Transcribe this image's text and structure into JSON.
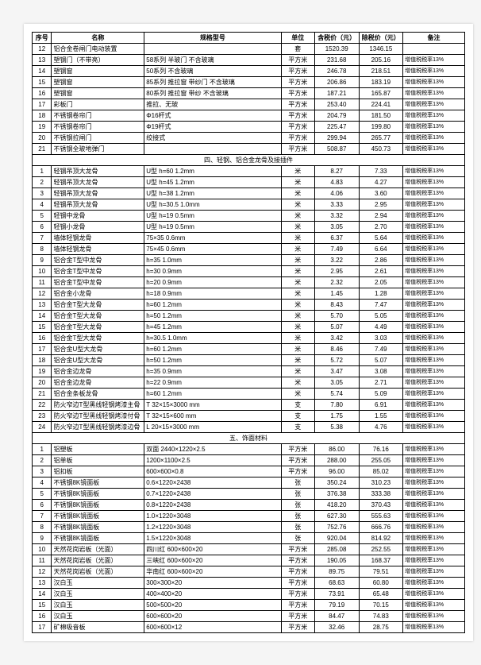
{
  "headers": [
    "序号",
    "名称",
    "规格型号",
    "单位",
    "含税价（元）",
    "除税价（元）",
    "备注"
  ],
  "sections": [
    {
      "title": null,
      "rows": [
        {
          "n": "12",
          "name": "铝合金卷闸门电动装置",
          "spec": "",
          "unit": "套",
          "p1": "1520.39",
          "p2": "1346.15",
          "remark": ""
        },
        {
          "n": "13",
          "name": "塑钢门（不带亮）",
          "spec": "58系列 半玻门 不含玻璃",
          "unit": "平方米",
          "p1": "231.68",
          "p2": "205.16",
          "remark": "增值税税率13%"
        },
        {
          "n": "14",
          "name": "塑钢窗",
          "spec": "50系列  不含玻璃",
          "unit": "平方米",
          "p1": "246.78",
          "p2": "218.51",
          "remark": "增值税税率13%"
        },
        {
          "n": "15",
          "name": "塑钢窗",
          "spec": "85系列 推拉窗 带纱门 不含玻璃",
          "unit": "平方米",
          "p1": "206.86",
          "p2": "183.19",
          "remark": "增值税税率13%"
        },
        {
          "n": "16",
          "name": "塑钢窗",
          "spec": "80系列 推拉窗 带纱 不含玻璃",
          "unit": "平方米",
          "p1": "187.21",
          "p2": "165.87",
          "remark": "增值税税率13%"
        },
        {
          "n": "17",
          "name": "彩板门",
          "spec": "推拉、无玻",
          "unit": "平方米",
          "p1": "253.40",
          "p2": "224.41",
          "remark": "增值税税率13%"
        },
        {
          "n": "18",
          "name": "不锈钢卷帘门",
          "spec": "Φ16杆式",
          "unit": "平方米",
          "p1": "204.79",
          "p2": "181.50",
          "remark": "增值税税率13%"
        },
        {
          "n": "19",
          "name": "不锈钢卷帘门",
          "spec": "Φ19杆式",
          "unit": "平方米",
          "p1": "225.47",
          "p2": "199.80",
          "remark": "增值税税率13%"
        },
        {
          "n": "20",
          "name": "不锈钢拉闸门",
          "spec": "绞接式",
          "unit": "平方米",
          "p1": "299.94",
          "p2": "265.77",
          "remark": "增值税税率13%"
        },
        {
          "n": "21",
          "name": "不锈钢全玻地弹门",
          "spec": "",
          "unit": "平方米",
          "p1": "508.87",
          "p2": "450.73",
          "remark": "增值税税率13%"
        }
      ]
    },
    {
      "title": "四、轻钢、铝合金龙骨及接插件",
      "rows": [
        {
          "n": "1",
          "name": "轻钢吊顶大龙骨",
          "spec": "U型 h=60    1.2mm",
          "unit": "米",
          "p1": "8.27",
          "p2": "7.33",
          "remark": "增值税税率13%"
        },
        {
          "n": "2",
          "name": "轻钢吊顶大龙骨",
          "spec": "U型 h=45    1.2mm",
          "unit": "米",
          "p1": "4.83",
          "p2": "4.27",
          "remark": "增值税税率13%"
        },
        {
          "n": "3",
          "name": "轻钢吊顶大龙骨",
          "spec": "U型 h=38    1.2mm",
          "unit": "米",
          "p1": "4.06",
          "p2": "3.60",
          "remark": "增值税税率13%"
        },
        {
          "n": "4",
          "name": "轻钢吊顶大龙骨",
          "spec": "U型 h=30.5  1.0mm",
          "unit": "米",
          "p1": "3.33",
          "p2": "2.95",
          "remark": "增值税税率13%"
        },
        {
          "n": "5",
          "name": "轻钢中龙骨",
          "spec": "U型 h=19    0.5mm",
          "unit": "米",
          "p1": "3.32",
          "p2": "2.94",
          "remark": "增值税税率13%"
        },
        {
          "n": "6",
          "name": "轻钢小龙骨",
          "spec": "U型 h=19    0.5mm",
          "unit": "米",
          "p1": "3.05",
          "p2": "2.70",
          "remark": "增值税税率13%"
        },
        {
          "n": "7",
          "name": "墙体轻钢龙骨",
          "spec": "75×35      0.6mm",
          "unit": "米",
          "p1": "6.37",
          "p2": "5.64",
          "remark": "增值税税率13%"
        },
        {
          "n": "8",
          "name": "墙体轻钢龙骨",
          "spec": "75×45      0.6mm",
          "unit": "米",
          "p1": "7.49",
          "p2": "6.64",
          "remark": "增值税税率13%"
        },
        {
          "n": "9",
          "name": "铝合金T型中龙骨",
          "spec": "h=35       1.0mm",
          "unit": "米",
          "p1": "3.22",
          "p2": "2.86",
          "remark": "增值税税率13%"
        },
        {
          "n": "10",
          "name": "铝合金T型中龙骨",
          "spec": "h=30       0.9mm",
          "unit": "米",
          "p1": "2.95",
          "p2": "2.61",
          "remark": "增值税税率13%"
        },
        {
          "n": "11",
          "name": "铝合金T型中龙骨",
          "spec": "h=20       0.9mm",
          "unit": "米",
          "p1": "2.32",
          "p2": "2.05",
          "remark": "增值税税率13%"
        },
        {
          "n": "12",
          "name": "铝合金小龙骨",
          "spec": "h=18       0.9mm",
          "unit": "米",
          "p1": "1.45",
          "p2": "1.28",
          "remark": "增值税税率13%"
        },
        {
          "n": "13",
          "name": "铝合金T型大龙骨",
          "spec": "h=60       1.2mm",
          "unit": "米",
          "p1": "8.43",
          "p2": "7.47",
          "remark": "增值税税率13%"
        },
        {
          "n": "14",
          "name": "铝合金T型大龙骨",
          "spec": "h=50       1.2mm",
          "unit": "米",
          "p1": "5.70",
          "p2": "5.05",
          "remark": "增值税税率13%"
        },
        {
          "n": "15",
          "name": "铝合金T型大龙骨",
          "spec": "h=45       1.2mm",
          "unit": "米",
          "p1": "5.07",
          "p2": "4.49",
          "remark": "增值税税率13%"
        },
        {
          "n": "16",
          "name": "铝合金T型大龙骨",
          "spec": "h=30.5     1.0mm",
          "unit": "米",
          "p1": "3.42",
          "p2": "3.03",
          "remark": "增值税税率13%"
        },
        {
          "n": "17",
          "name": "铝合金U型大龙骨",
          "spec": "h=60       1.2mm",
          "unit": "米",
          "p1": "8.46",
          "p2": "7.49",
          "remark": "增值税税率13%"
        },
        {
          "n": "18",
          "name": "铝合金U型大龙骨",
          "spec": "h=50       1.2mm",
          "unit": "米",
          "p1": "5.72",
          "p2": "5.07",
          "remark": "增值税税率13%"
        },
        {
          "n": "19",
          "name": "铝合金边龙骨",
          "spec": "h=35       0.9mm",
          "unit": "米",
          "p1": "3.47",
          "p2": "3.08",
          "remark": "增值税税率13%"
        },
        {
          "n": "20",
          "name": "铝合金边龙骨",
          "spec": "h=22       0.9mm",
          "unit": "米",
          "p1": "3.05",
          "p2": "2.71",
          "remark": "增值税税率13%"
        },
        {
          "n": "21",
          "name": "铝合金条板龙骨",
          "spec": "h=60       1.2mm",
          "unit": "米",
          "p1": "5.74",
          "p2": "5.09",
          "remark": "增值税税率13%"
        },
        {
          "n": "22",
          "name": "防火窄边T型黑线轻钢烤漆主骨",
          "spec": "T 32×15×3000 mm",
          "unit": "支",
          "p1": "7.80",
          "p2": "6.91",
          "remark": "增值税税率13%"
        },
        {
          "n": "23",
          "name": "防火窄边T型黑线轻钢烤漆付骨",
          "spec": "T 32×15×600  mm",
          "unit": "支",
          "p1": "1.75",
          "p2": "1.55",
          "remark": "增值税税率13%"
        },
        {
          "n": "24",
          "name": "防火窄边T型黑线轻钢烤漆边骨",
          "spec": "L 20×15×3000 mm",
          "unit": "支",
          "p1": "5.38",
          "p2": "4.76",
          "remark": "增值税税率13%"
        }
      ]
    },
    {
      "title": "五、饰面材料",
      "rows": [
        {
          "n": "1",
          "name": "铝塑板",
          "spec": "双面 2440×1220×2.5",
          "unit": "平方米",
          "p1": "86.00",
          "p2": "76.16",
          "remark": "增值税税率13%"
        },
        {
          "n": "2",
          "name": "铝单板",
          "spec": "1200×1100×2.5",
          "unit": "平方米",
          "p1": "288.00",
          "p2": "255.05",
          "remark": "增值税税率13%"
        },
        {
          "n": "3",
          "name": "铝扣板",
          "spec": "600×600×0.8",
          "unit": "平方米",
          "p1": "96.00",
          "p2": "85.02",
          "remark": "增值税税率13%"
        },
        {
          "n": "4",
          "name": "不锈钢8K镜面板",
          "spec": "0.6×1220×2438",
          "unit": "张",
          "p1": "350.24",
          "p2": "310.23",
          "remark": "增值税税率13%"
        },
        {
          "n": "5",
          "name": "不锈钢8K镜面板",
          "spec": "0.7×1220×2438",
          "unit": "张",
          "p1": "376.38",
          "p2": "333.38",
          "remark": "增值税税率13%"
        },
        {
          "n": "6",
          "name": "不锈钢8K镜面板",
          "spec": "0.8×1220×2438",
          "unit": "张",
          "p1": "418.20",
          "p2": "370.43",
          "remark": "增值税税率13%"
        },
        {
          "n": "7",
          "name": "不锈钢8K镜面板",
          "spec": "1.0×1220×3048",
          "unit": "张",
          "p1": "627.30",
          "p2": "555.63",
          "remark": "增值税税率13%"
        },
        {
          "n": "8",
          "name": "不锈钢8K镜面板",
          "spec": "1.2×1220×3048",
          "unit": "张",
          "p1": "752.76",
          "p2": "666.76",
          "remark": "增值税税率13%"
        },
        {
          "n": "9",
          "name": "不锈钢8K镜面板",
          "spec": "1.5×1220×3048",
          "unit": "张",
          "p1": "920.04",
          "p2": "814.92",
          "remark": "增值税税率13%"
        },
        {
          "n": "10",
          "name": "天然花岗岩板（光面）",
          "spec": "四川红 600×600×20",
          "unit": "平方米",
          "p1": "285.08",
          "p2": "252.55",
          "remark": "增值税税率13%"
        },
        {
          "n": "11",
          "name": "天然花岗岩板（光面）",
          "spec": "三峡红 600×600×20",
          "unit": "平方米",
          "p1": "190.05",
          "p2": "168.37",
          "remark": "增值税税率13%"
        },
        {
          "n": "12",
          "name": "天然花岗岩板（光面）",
          "spec": "华南红 600×600×20",
          "unit": "平方米",
          "p1": "89.75",
          "p2": "79.51",
          "remark": "增值税税率13%"
        },
        {
          "n": "13",
          "name": "汉白玉",
          "spec": "300×300×20",
          "unit": "平方米",
          "p1": "68.63",
          "p2": "60.80",
          "remark": "增值税税率13%"
        },
        {
          "n": "14",
          "name": "汉白玉",
          "spec": "400×400×20",
          "unit": "平方米",
          "p1": "73.91",
          "p2": "65.48",
          "remark": "增值税税率13%"
        },
        {
          "n": "15",
          "name": "汉白玉",
          "spec": "500×500×20",
          "unit": "平方米",
          "p1": "79.19",
          "p2": "70.15",
          "remark": "增值税税率13%"
        },
        {
          "n": "16",
          "name": "汉白玉",
          "spec": "600×600×20",
          "unit": "平方米",
          "p1": "84.47",
          "p2": "74.83",
          "remark": "增值税税率13%"
        },
        {
          "n": "17",
          "name": "矿棉吸音板",
          "spec": "600×600×12",
          "unit": "平方米",
          "p1": "32.46",
          "p2": "28.75",
          "remark": "增值税税率13%"
        }
      ]
    }
  ]
}
